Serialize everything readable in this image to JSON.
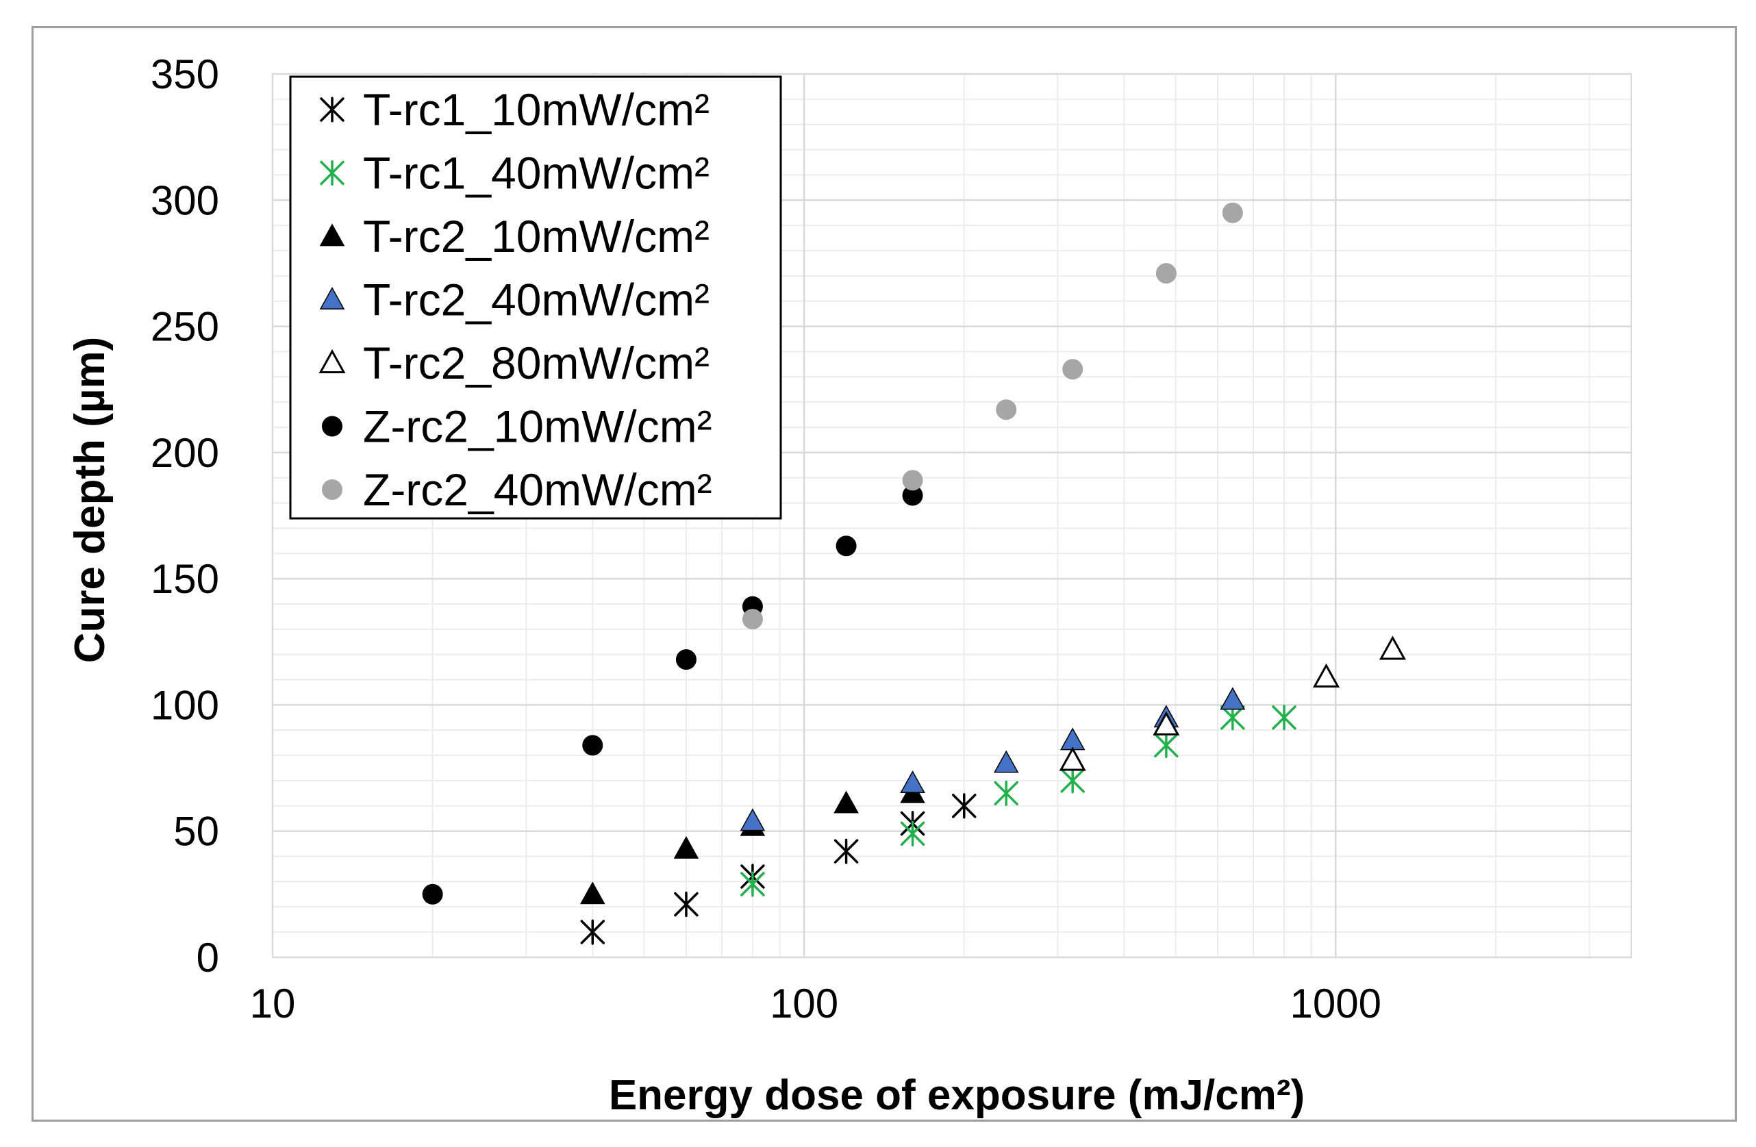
{
  "chart_data": {
    "type": "scatter",
    "xscale": "log",
    "xlabel": "Energy dose of exposure (mJ/cm²)",
    "ylabel": "Cure depth (µm)",
    "xlim": [
      10,
      3600
    ],
    "ylim": [
      0,
      350
    ],
    "xticks": [
      10,
      100,
      1000
    ],
    "xtick_labels": [
      "10",
      "100",
      "1000"
    ],
    "yticks": [
      0,
      50,
      100,
      150,
      200,
      250,
      300,
      350
    ],
    "ytick_labels": [
      "0",
      "50",
      "100",
      "150",
      "200",
      "250",
      "300",
      "350"
    ],
    "grid": true,
    "legend_position": "top-left",
    "series": [
      {
        "name": "T-rc1_10mW/cm²",
        "marker": "asterisk",
        "color": "#000000",
        "x": [
          40,
          60,
          80,
          120,
          160,
          200
        ],
        "y": [
          10,
          21,
          32,
          42,
          53,
          60
        ]
      },
      {
        "name": "T-rc1_40mW/cm²",
        "marker": "asterisk",
        "color": "#21b04b",
        "x": [
          80,
          160,
          240,
          320,
          480,
          640,
          800
        ],
        "y": [
          29,
          49,
          65,
          70,
          84,
          95,
          95
        ]
      },
      {
        "name": "T-rc2_10mW/cm²",
        "marker": "triangle-filled",
        "color": "#000000",
        "x": [
          40,
          60,
          80,
          120,
          160,
          640
        ],
        "y": [
          25,
          43,
          52,
          61,
          65,
          102
        ]
      },
      {
        "name": "T-rc2_40mW/cm²",
        "marker": "triangle-filled",
        "color": "#4472c4",
        "x": [
          80,
          160,
          240,
          320,
          480,
          640
        ],
        "y": [
          54,
          69,
          77,
          86,
          95,
          102
        ]
      },
      {
        "name": "T-rc2_80mW/cm²",
        "marker": "triangle-open",
        "color": "#000000",
        "x": [
          320,
          480,
          960,
          1280
        ],
        "y": [
          78,
          92,
          111,
          122
        ]
      },
      {
        "name": "Z-rc2_10mW/cm²",
        "marker": "circle",
        "color": "#000000",
        "x": [
          20,
          40,
          60,
          80,
          120,
          160
        ],
        "y": [
          25,
          84,
          118,
          139,
          163,
          183
        ]
      },
      {
        "name": "Z-rc2_40mW/cm²",
        "marker": "circle",
        "color": "#a6a6a6",
        "x": [
          80,
          160,
          240,
          320,
          480,
          640
        ],
        "y": [
          134,
          189,
          217,
          233,
          271,
          295
        ]
      }
    ]
  }
}
